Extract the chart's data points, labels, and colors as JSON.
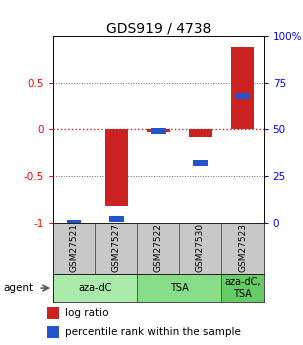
{
  "title": "GDS919 / 4738",
  "samples": [
    "GSM27521",
    "GSM27527",
    "GSM27522",
    "GSM27530",
    "GSM27523"
  ],
  "log_ratios": [
    0.0,
    -0.82,
    -0.03,
    -0.08,
    0.88
  ],
  "percentile_ranks": [
    0.0,
    0.02,
    0.49,
    0.32,
    0.68
  ],
  "bar_color_red": "#cc2222",
  "bar_color_blue": "#2255cc",
  "ylim_left": [
    -1,
    1
  ],
  "ylim_right": [
    0,
    100
  ],
  "yticks_left": [
    -1,
    -0.5,
    0,
    0.5
  ],
  "ytick_labels_left": [
    "-1",
    "-0.5",
    "0",
    "0.5"
  ],
  "yticks_right": [
    0,
    25,
    50,
    75,
    100
  ],
  "ytick_labels_right": [
    "0",
    "25",
    "50",
    "75",
    "100%"
  ],
  "agent_groups": [
    {
      "label": "aza-dC",
      "cols": [
        0,
        1
      ],
      "color": "#aaeaaa"
    },
    {
      "label": "TSA",
      "cols": [
        2,
        3
      ],
      "color": "#88dd88"
    },
    {
      "label": "aza-dC,\nTSA",
      "cols": [
        4
      ],
      "color": "#66cc66"
    }
  ],
  "legend_items": [
    {
      "color": "#cc2222",
      "label": "log ratio"
    },
    {
      "color": "#2255cc",
      "label": "percentile rank within the sample"
    }
  ],
  "sample_bg_color": "#c8c8c8",
  "hline_color": "#cc2222",
  "grid_color": "#666666",
  "bar_width": 0.55,
  "pct_bar_width": 0.35,
  "pct_bar_height": 0.06
}
